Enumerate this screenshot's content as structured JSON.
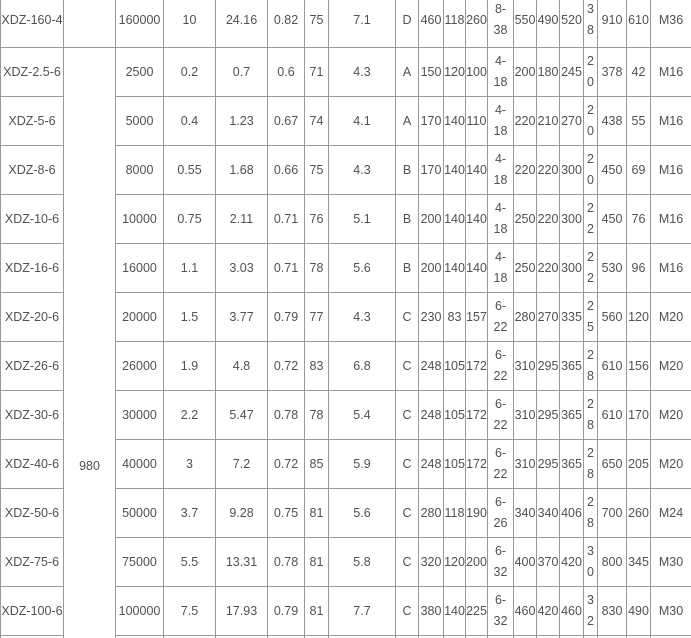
{
  "colors": {
    "border": "#999999",
    "text": "#4c5257",
    "background": "#ffffff"
  },
  "table": {
    "speed_rpm": "980",
    "rows": [
      {
        "model": "XDZ-160-4",
        "values": [
          "160000",
          "10",
          "24.16",
          "0.82",
          "75",
          "7.1",
          "D",
          "460",
          "118",
          "260",
          "8-38",
          "550",
          "490",
          "520",
          "38",
          "910",
          "610",
          "M36"
        ]
      },
      {
        "model": "XDZ-2.5-6",
        "values": [
          "2500",
          "0.2",
          "0.7",
          "0.6",
          "71",
          "4.3",
          "A",
          "150",
          "120",
          "100",
          "4-18",
          "200",
          "180",
          "245",
          "20",
          "378",
          "42",
          "M16"
        ]
      },
      {
        "model": "XDZ-5-6",
        "values": [
          "5000",
          "0.4",
          "1.23",
          "0.67",
          "74",
          "4.1",
          "A",
          "170",
          "140",
          "110",
          "4-18",
          "220",
          "210",
          "270",
          "20",
          "438",
          "55",
          "M16"
        ]
      },
      {
        "model": "XDZ-8-6",
        "values": [
          "8000",
          "0.55",
          "1.68",
          "0.66",
          "75",
          "4.3",
          "B",
          "170",
          "140",
          "140",
          "4-18",
          "220",
          "220",
          "300",
          "20",
          "450",
          "69",
          "M16"
        ]
      },
      {
        "model": "XDZ-10-6",
        "values": [
          "10000",
          "0.75",
          "2.11",
          "0.71",
          "76",
          "5.1",
          "B",
          "200",
          "140",
          "140",
          "4-18",
          "250",
          "220",
          "300",
          "22",
          "450",
          "76",
          "M16"
        ]
      },
      {
        "model": "XDZ-16-6",
        "values": [
          "16000",
          "1.1",
          "3.03",
          "0.71",
          "78",
          "5.6",
          "B",
          "200",
          "140",
          "140",
          "4-18",
          "250",
          "220",
          "300",
          "22",
          "530",
          "96",
          "M16"
        ]
      },
      {
        "model": "XDZ-20-6",
        "values": [
          "20000",
          "1.5",
          "3.77",
          "0.79",
          "77",
          "4.3",
          "C",
          "230",
          "83",
          "157",
          "6-22",
          "280",
          "270",
          "335",
          "25",
          "560",
          "120",
          "M20"
        ]
      },
      {
        "model": "XDZ-26-6",
        "values": [
          "26000",
          "1.9",
          "4.8",
          "0.72",
          "83",
          "6.8",
          "C",
          "248",
          "105",
          "172",
          "6-22",
          "310",
          "295",
          "365",
          "28",
          "610",
          "156",
          "M20"
        ]
      },
      {
        "model": "XDZ-30-6",
        "values": [
          "30000",
          "2.2",
          "5.47",
          "0.78",
          "78",
          "5.4",
          "C",
          "248",
          "105",
          "172",
          "6-22",
          "310",
          "295",
          "365",
          "28",
          "610",
          "170",
          "M20"
        ]
      },
      {
        "model": "XDZ-40-6",
        "values": [
          "40000",
          "3",
          "7.2",
          "0.72",
          "85",
          "5.9",
          "C",
          "248",
          "105",
          "172",
          "6-22",
          "310",
          "295",
          "365",
          "28",
          "650",
          "205",
          "M20"
        ]
      },
      {
        "model": "XDZ-50-6",
        "values": [
          "50000",
          "3.7",
          "9.28",
          "0.75",
          "81",
          "5.6",
          "C",
          "280",
          "118",
          "190",
          "6-26",
          "340",
          "340",
          "406",
          "28",
          "700",
          "260",
          "M24"
        ]
      },
      {
        "model": "XDZ-75-6",
        "values": [
          "75000",
          "5.5",
          "13.31",
          "0.78",
          "81",
          "5.8",
          "C",
          "320",
          "120",
          "200",
          "6-32",
          "400",
          "370",
          "420",
          "30",
          "800",
          "345",
          "M30"
        ]
      },
      {
        "model": "XDZ-100-6",
        "values": [
          "100000",
          "7.5",
          "17.93",
          "0.79",
          "81",
          "7.7",
          "C",
          "380",
          "140",
          "225",
          "6-32",
          "460",
          "420",
          "460",
          "32",
          "830",
          "490",
          "M30"
        ]
      }
    ]
  }
}
